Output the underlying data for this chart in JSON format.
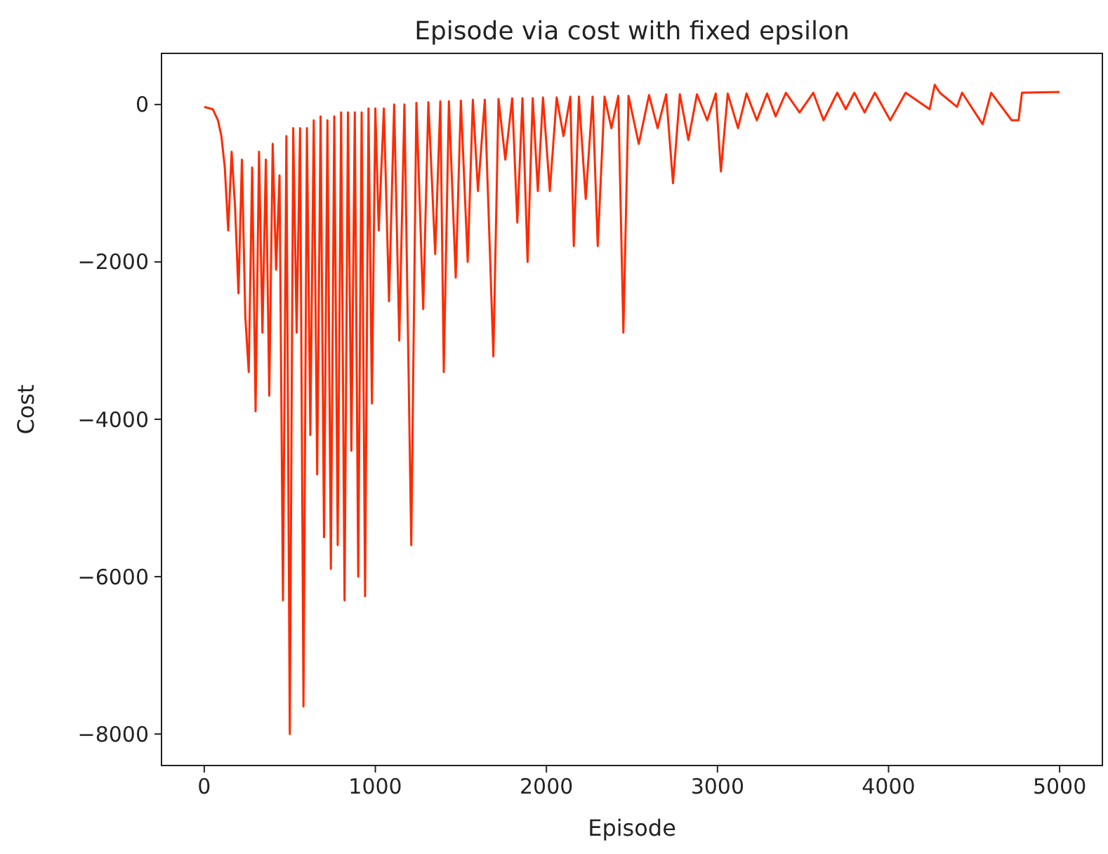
{
  "chart_data": {
    "type": "line",
    "title": "Episode via cost with fixed epsilon",
    "xlabel": "Episode",
    "ylabel": "Cost",
    "xlim": [
      -250,
      5250
    ],
    "ylim": [
      -8400,
      650
    ],
    "xticks": [
      0,
      1000,
      2000,
      3000,
      4000,
      5000
    ],
    "yticks": [
      -8000,
      -6000,
      -4000,
      -2000,
      0
    ],
    "line_style": "solid",
    "marker": "none",
    "series": [
      {
        "color": "#ff2a00",
        "x": [
          0,
          50,
          80,
          100,
          120,
          140,
          160,
          180,
          200,
          220,
          240,
          260,
          280,
          300,
          320,
          340,
          360,
          380,
          400,
          420,
          440,
          460,
          480,
          500,
          520,
          540,
          560,
          580,
          600,
          620,
          640,
          660,
          680,
          700,
          720,
          740,
          760,
          780,
          800,
          820,
          840,
          860,
          880,
          900,
          920,
          940,
          960,
          980,
          1000,
          1020,
          1050,
          1080,
          1110,
          1140,
          1170,
          1210,
          1240,
          1280,
          1310,
          1350,
          1380,
          1400,
          1430,
          1470,
          1500,
          1540,
          1570,
          1600,
          1640,
          1690,
          1720,
          1760,
          1800,
          1830,
          1860,
          1890,
          1920,
          1950,
          1980,
          2020,
          2060,
          2100,
          2140,
          2160,
          2190,
          2230,
          2270,
          2300,
          2340,
          2380,
          2420,
          2450,
          2480,
          2540,
          2600,
          2650,
          2700,
          2740,
          2780,
          2830,
          2880,
          2940,
          2990,
          3020,
          3060,
          3120,
          3170,
          3230,
          3290,
          3340,
          3400,
          3480,
          3560,
          3620,
          3700,
          3750,
          3800,
          3860,
          3920,
          4010,
          4100,
          4240,
          4270,
          4300,
          4400,
          4430,
          4550,
          4600,
          4720,
          4760,
          4780,
          5000
        ],
        "values": [
          -30,
          -60,
          -200,
          -400,
          -800,
          -1600,
          -600,
          -1300,
          -2400,
          -700,
          -2700,
          -3400,
          -800,
          -3900,
          -600,
          -2900,
          -700,
          -3700,
          -500,
          -2100,
          -900,
          -6300,
          -400,
          -8000,
          -300,
          -2900,
          -300,
          -7650,
          -300,
          -4200,
          -200,
          -4700,
          -150,
          -5500,
          -200,
          -5900,
          -150,
          -5600,
          -100,
          -6300,
          -100,
          -4400,
          -100,
          -6000,
          -100,
          -6250,
          -50,
          -3800,
          -50,
          -1600,
          -50,
          -2500,
          0,
          -3000,
          0,
          -5600,
          20,
          -2600,
          30,
          -1900,
          40,
          -3400,
          40,
          -2200,
          50,
          -2000,
          60,
          -1100,
          60,
          -3200,
          70,
          -700,
          80,
          -1500,
          80,
          -2000,
          80,
          -1100,
          90,
          -1100,
          90,
          -400,
          100,
          -1800,
          100,
          -1200,
          100,
          -1800,
          100,
          -300,
          110,
          -2900,
          110,
          -500,
          120,
          -300,
          130,
          -1000,
          130,
          -450,
          130,
          -200,
          140,
          -850,
          140,
          -300,
          140,
          -200,
          140,
          -150,
          150,
          -100,
          150,
          -200,
          150,
          -60,
          150,
          -100,
          150,
          -200,
          150,
          -60,
          250,
          150,
          -30,
          150,
          -250,
          150,
          -200,
          -200,
          150,
          160
        ]
      }
    ]
  }
}
